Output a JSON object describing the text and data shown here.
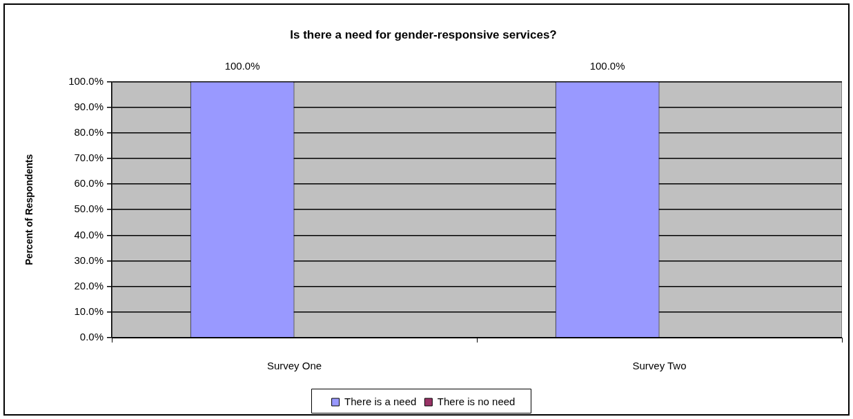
{
  "chart_data": {
    "type": "bar",
    "title": "Is there a need for gender-responsive services?",
    "ylabel": "Percent of Respondents",
    "categories": [
      "Survey One",
      "Survey Two"
    ],
    "series": [
      {
        "name": "There is a need",
        "color": "#9999ff",
        "values": [
          100,
          100
        ],
        "value_labels": [
          "100.0%",
          "100.0%"
        ]
      },
      {
        "name": "There is no need",
        "color": "#993366",
        "values": [
          0,
          0
        ]
      }
    ],
    "ylim": [
      0,
      100
    ],
    "yticks": [
      {
        "value": 0,
        "label": "0.0%"
      },
      {
        "value": 10,
        "label": "10.0%"
      },
      {
        "value": 20,
        "label": "20.0%"
      },
      {
        "value": 30,
        "label": "30.0%"
      },
      {
        "value": 40,
        "label": "40.0%"
      },
      {
        "value": 50,
        "label": "50.0%"
      },
      {
        "value": 60,
        "label": "60.0%"
      },
      {
        "value": 70,
        "label": "70.0%"
      },
      {
        "value": 80,
        "label": "80.0%"
      },
      {
        "value": 90,
        "label": "90.0%"
      },
      {
        "value": 100,
        "label": "100.0%"
      }
    ],
    "grid": "y",
    "legend": "bottom"
  }
}
